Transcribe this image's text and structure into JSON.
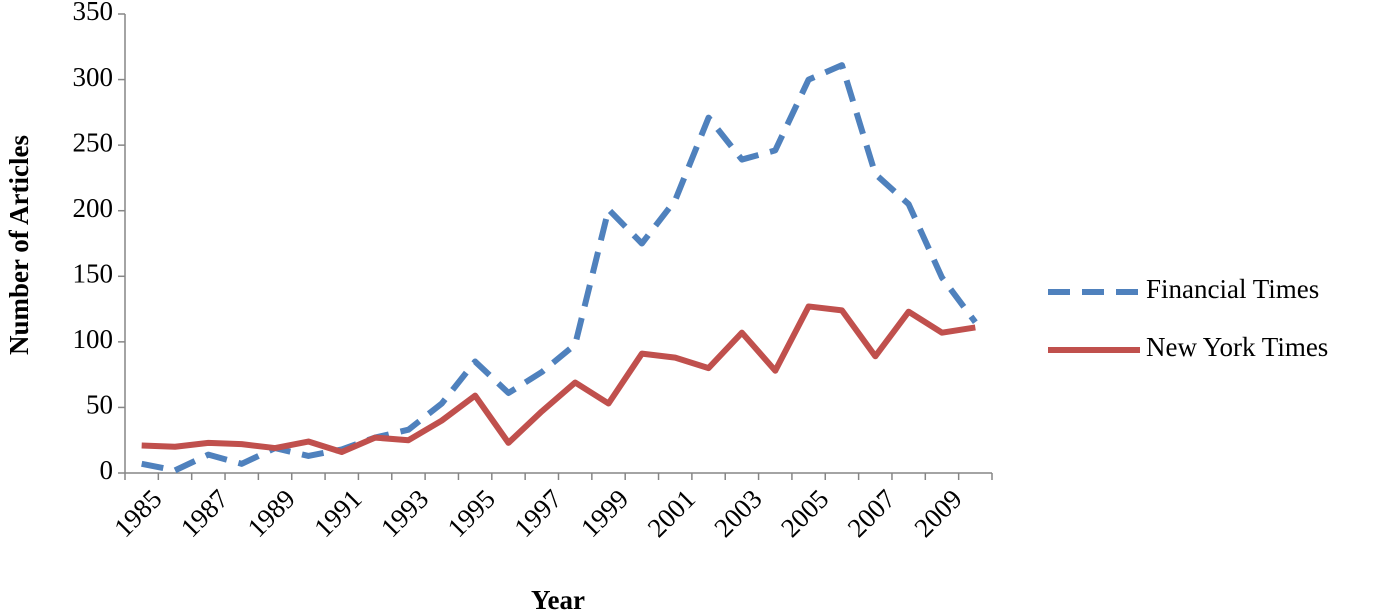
{
  "chart_data": {
    "type": "line",
    "x_label": "Year",
    "y_label": "Number of Articles",
    "categories": [
      "1985",
      null,
      "1987",
      null,
      "1989",
      null,
      "1991",
      null,
      "1993",
      null,
      "1995",
      null,
      "1997",
      null,
      "1999",
      null,
      "2001",
      null,
      "2003",
      null,
      "2005",
      null,
      "2007",
      null,
      "2009",
      null
    ],
    "series": [
      {
        "name": "Financial Times",
        "color": "#4f81bd",
        "dash": true,
        "values": [
          7,
          2,
          14,
          7,
          19,
          13,
          18,
          27,
          33,
          53,
          85,
          61,
          77,
          98,
          201,
          175,
          208,
          271,
          239,
          246,
          300,
          311,
          228,
          205,
          149,
          115
        ]
      },
      {
        "name": "New York Times",
        "color": "#c0504d",
        "dash": false,
        "values": [
          21,
          20,
          23,
          22,
          19,
          24,
          16,
          27,
          25,
          40,
          59,
          23,
          47,
          69,
          53,
          91,
          88,
          80,
          107,
          78,
          127,
          124,
          89,
          123,
          107,
          111
        ]
      }
    ],
    "ylim": [
      0,
      350
    ],
    "yticks": [
      0,
      50,
      100,
      150,
      200,
      250,
      300,
      350
    ],
    "grid": false,
    "legend": "right"
  }
}
